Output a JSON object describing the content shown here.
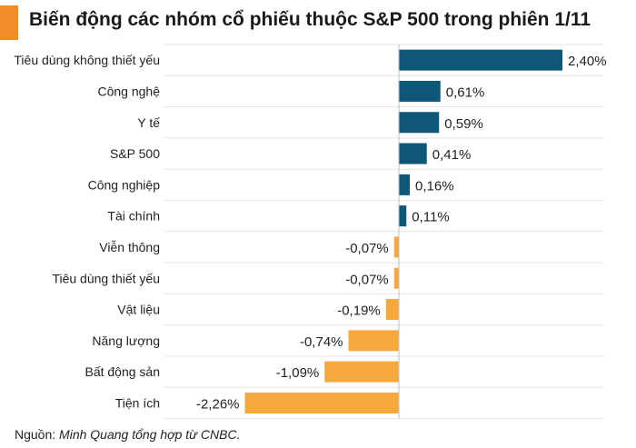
{
  "title": "Biến động các nhóm cổ phiếu thuộc S&P 500 trong phiên 1/11",
  "source": {
    "prefix": "Nguồn: ",
    "text": "Minh Quang tổng hợp từ CNBC."
  },
  "colors": {
    "positive": "#0f5776",
    "negative": "#f7a83c",
    "accent": "#f28c28",
    "grid": "#e3e3e3"
  },
  "chart_data": {
    "type": "bar",
    "orientation": "horizontal",
    "title": "Biến động các nhóm cổ phiếu thuộc S&P 500 trong phiên 1/11",
    "unit": "%",
    "xlim": [
      -2.26,
      2.4
    ],
    "categories": [
      "Tiêu dùng không thiết yếu",
      "Công nghệ",
      "Y tế",
      "S&P 500",
      "Công nghiệp",
      "Tài chính",
      "Viễn thông",
      "Tiêu dùng thiết yếu",
      "Vật liệu",
      "Năng lượng",
      "Bất động sản",
      "Tiện ích"
    ],
    "values": [
      2.4,
      0.61,
      0.59,
      0.41,
      0.16,
      0.11,
      -0.07,
      -0.07,
      -0.19,
      -0.74,
      -1.09,
      -2.26
    ],
    "labels": [
      "2,40%",
      "0,61%",
      "0,59%",
      "0,41%",
      "0,16%",
      "0,11%",
      "-0,07%",
      "-0,07%",
      "-0,19%",
      "-0,74%",
      "-1,09%",
      "-2,26%"
    ]
  }
}
